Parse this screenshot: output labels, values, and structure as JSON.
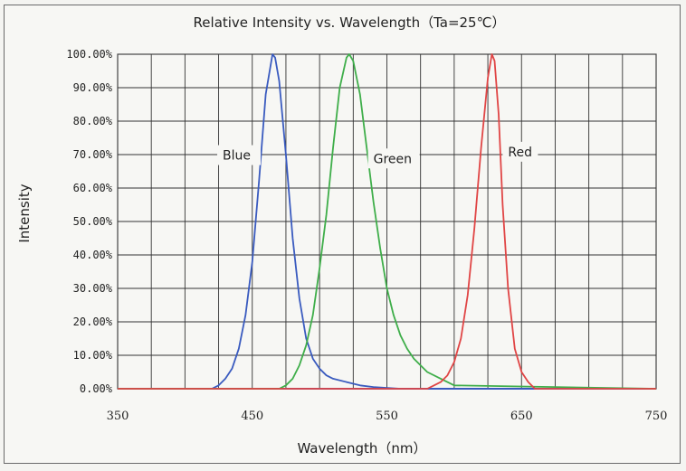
{
  "chart_data": {
    "type": "line",
    "title": "Relative Intensity vs. Wavelength（Ta=25℃）",
    "xlabel": "Wavelength（nm）",
    "ylabel": "Intensity",
    "xlim": [
      350,
      750
    ],
    "ylim": [
      0,
      1
    ],
    "x_ticks": [
      "350",
      "450",
      "550",
      "650",
      "750"
    ],
    "y_ticks": [
      "0.00%",
      "10.00%",
      "20.00%",
      "30.00%",
      "40.00%",
      "50.00%",
      "60.00%",
      "70.00%",
      "80.00%",
      "90.00%",
      "100.00%"
    ],
    "grid": true,
    "series": [
      {
        "name": "Blue",
        "color": "#3a5bbf",
        "x": [
          350,
          420,
          425,
          430,
          435,
          440,
          445,
          450,
          455,
          460,
          465,
          467,
          470,
          475,
          480,
          485,
          490,
          495,
          500,
          505,
          510,
          520,
          530,
          540,
          560,
          750
        ],
        "y": [
          0,
          0,
          0.01,
          0.03,
          0.06,
          0.12,
          0.22,
          0.38,
          0.62,
          0.88,
          1.0,
          0.99,
          0.92,
          0.7,
          0.45,
          0.27,
          0.15,
          0.09,
          0.06,
          0.04,
          0.03,
          0.02,
          0.01,
          0.005,
          0,
          0
        ]
      },
      {
        "name": "Green",
        "color": "#3fae4a",
        "x": [
          350,
          470,
          475,
          480,
          485,
          490,
          495,
          500,
          505,
          510,
          515,
          520,
          522,
          525,
          530,
          535,
          540,
          545,
          550,
          555,
          560,
          565,
          570,
          580,
          590,
          600,
          750
        ],
        "y": [
          0,
          0,
          0.01,
          0.03,
          0.07,
          0.13,
          0.22,
          0.36,
          0.52,
          0.72,
          0.9,
          0.99,
          1.0,
          0.98,
          0.88,
          0.72,
          0.56,
          0.42,
          0.3,
          0.22,
          0.16,
          0.12,
          0.09,
          0.05,
          0.03,
          0.01,
          0
        ]
      },
      {
        "name": "Red",
        "color": "#e04545",
        "x": [
          350,
          580,
          585,
          590,
          595,
          600,
          605,
          610,
          615,
          620,
          625,
          628,
          630,
          633,
          636,
          640,
          645,
          650,
          655,
          660,
          750
        ],
        "y": [
          0,
          0,
          0.01,
          0.02,
          0.04,
          0.08,
          0.15,
          0.28,
          0.48,
          0.72,
          0.93,
          1.0,
          0.98,
          0.82,
          0.55,
          0.3,
          0.12,
          0.05,
          0.02,
          0,
          0
        ]
      }
    ],
    "annotations": [
      {
        "text": "Blue",
        "x": 428,
        "y": 0.685
      },
      {
        "text": "Green",
        "x": 540,
        "y": 0.675
      },
      {
        "text": "Red",
        "x": 640,
        "y": 0.695
      }
    ]
  }
}
